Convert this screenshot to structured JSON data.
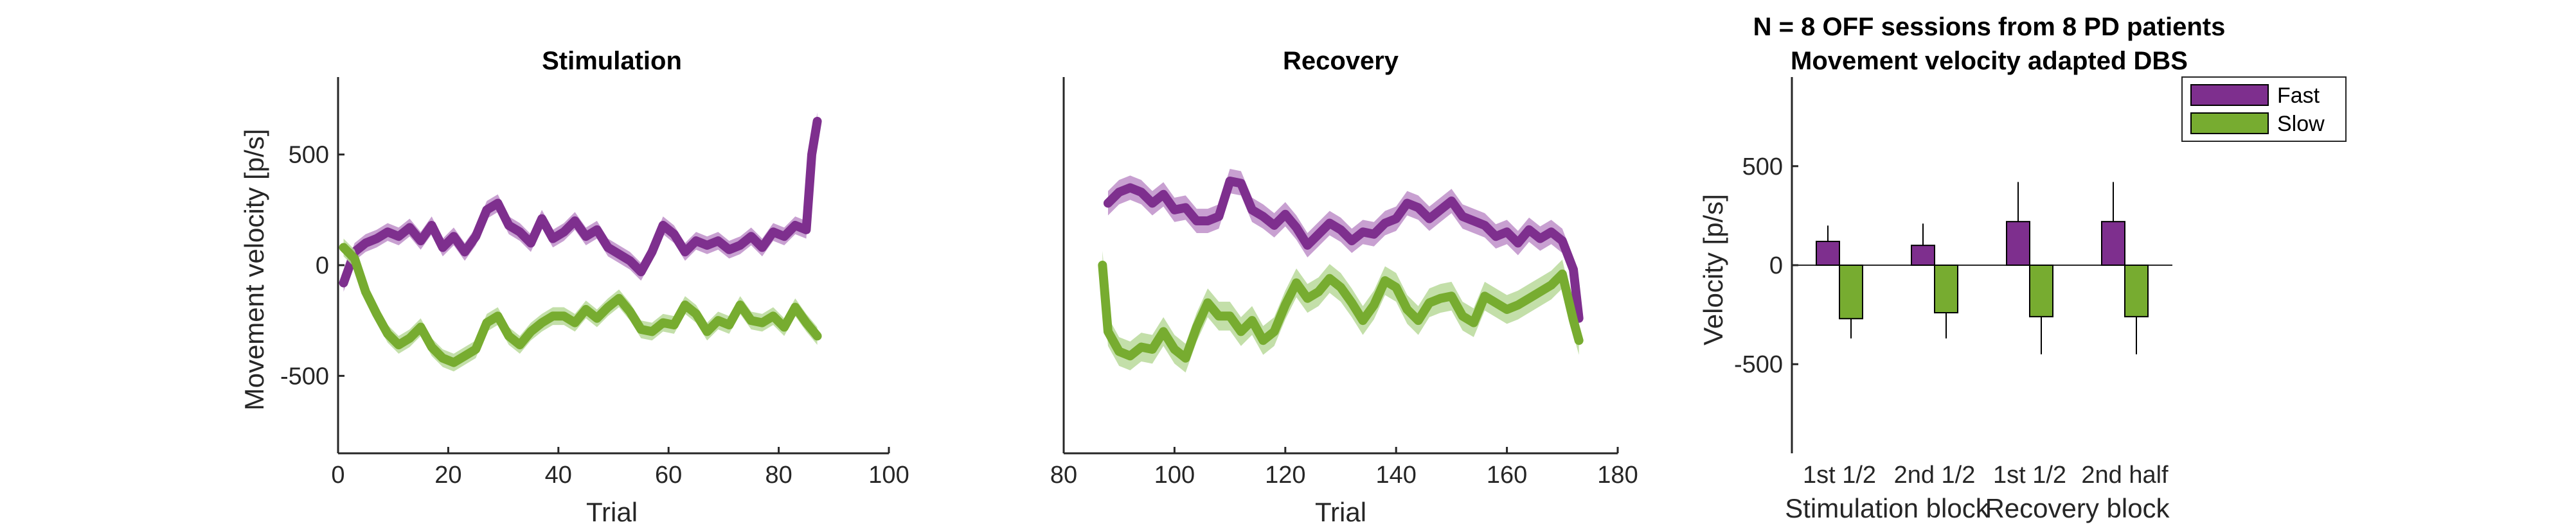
{
  "colors": {
    "fast": "#7E2F8E",
    "slow": "#77AC30",
    "fast_band": "#BE8FC9",
    "slow_band": "#B8D99A"
  },
  "chart_data": [
    {
      "type": "line",
      "title": "Stimulation",
      "xlabel": "Trial",
      "ylabel": "Movement velocity [p/s]",
      "xlim": [
        0,
        100
      ],
      "ylim": [
        -850,
        850
      ],
      "xticks": [
        0,
        20,
        40,
        60,
        80,
        100
      ],
      "yticks": [
        -500,
        0,
        500
      ],
      "series": [
        {
          "key": "fast",
          "x": [
            1,
            3,
            5,
            7,
            9,
            11,
            13,
            15,
            17,
            19,
            21,
            23,
            25,
            27,
            29,
            31,
            33,
            35,
            37,
            39,
            41,
            43,
            45,
            47,
            49,
            51,
            53,
            55,
            57,
            59,
            61,
            63,
            65,
            67,
            69,
            71,
            73,
            75,
            77,
            79,
            81,
            83,
            85,
            86,
            87
          ],
          "y": [
            -80,
            60,
            100,
            120,
            150,
            130,
            170,
            110,
            180,
            80,
            130,
            60,
            130,
            250,
            280,
            180,
            150,
            100,
            210,
            120,
            150,
            200,
            130,
            160,
            80,
            50,
            20,
            -30,
            60,
            180,
            140,
            60,
            110,
            90,
            110,
            70,
            90,
            130,
            80,
            150,
            130,
            180,
            160,
            500,
            650
          ],
          "band": 40
        },
        {
          "key": "slow",
          "x": [
            1,
            3,
            5,
            7,
            9,
            11,
            13,
            15,
            17,
            19,
            21,
            23,
            25,
            27,
            29,
            31,
            33,
            35,
            37,
            39,
            41,
            43,
            45,
            47,
            49,
            51,
            53,
            55,
            57,
            59,
            61,
            63,
            65,
            67,
            69,
            71,
            73,
            75,
            77,
            79,
            81,
            83,
            85,
            87
          ],
          "y": [
            80,
            30,
            -120,
            -220,
            -310,
            -360,
            -330,
            -280,
            -370,
            -420,
            -440,
            -410,
            -380,
            -260,
            -230,
            -320,
            -360,
            -300,
            -260,
            -230,
            -230,
            -260,
            -200,
            -240,
            -190,
            -150,
            -210,
            -290,
            -300,
            -260,
            -270,
            -180,
            -220,
            -300,
            -250,
            -270,
            -180,
            -250,
            -260,
            -230,
            -280,
            -190,
            -260,
            -320
          ],
          "band": 40
        }
      ]
    },
    {
      "type": "line",
      "title": "Recovery",
      "xlabel": "Trial",
      "ylabel": "",
      "xlim": [
        80,
        180
      ],
      "ylim": [
        -850,
        850
      ],
      "xticks": [
        80,
        100,
        120,
        140,
        160,
        180
      ],
      "yticks": [],
      "series": [
        {
          "key": "fast",
          "x": [
            88,
            90,
            92,
            94,
            96,
            98,
            100,
            102,
            104,
            106,
            108,
            110,
            112,
            114,
            116,
            118,
            120,
            122,
            124,
            126,
            128,
            130,
            132,
            134,
            136,
            138,
            140,
            142,
            144,
            146,
            148,
            150,
            152,
            154,
            156,
            158,
            160,
            162,
            164,
            166,
            168,
            170,
            172,
            173
          ],
          "y": [
            280,
            330,
            350,
            330,
            280,
            320,
            250,
            260,
            200,
            200,
            220,
            380,
            370,
            250,
            220,
            180,
            230,
            170,
            90,
            140,
            190,
            160,
            110,
            150,
            140,
            190,
            210,
            280,
            260,
            210,
            250,
            290,
            220,
            200,
            180,
            130,
            150,
            100,
            160,
            120,
            150,
            110,
            -20,
            -240
          ],
          "band": 55
        },
        {
          "key": "slow",
          "x": [
            87,
            88,
            90,
            92,
            94,
            96,
            98,
            100,
            102,
            104,
            106,
            108,
            110,
            112,
            114,
            116,
            118,
            120,
            122,
            124,
            126,
            128,
            130,
            132,
            134,
            136,
            138,
            140,
            142,
            144,
            146,
            148,
            150,
            152,
            154,
            156,
            158,
            160,
            162,
            164,
            166,
            168,
            170,
            172,
            173
          ],
          "y": [
            0,
            -300,
            -390,
            -410,
            -370,
            -380,
            -300,
            -380,
            -420,
            -280,
            -170,
            -230,
            -230,
            -300,
            -250,
            -340,
            -300,
            -180,
            -80,
            -150,
            -120,
            -60,
            -100,
            -170,
            -250,
            -180,
            -70,
            -100,
            -200,
            -250,
            -170,
            -150,
            -140,
            -230,
            -260,
            -140,
            -170,
            -200,
            -180,
            -150,
            -120,
            -90,
            -40,
            -250,
            -340
          ],
          "band": 65
        }
      ]
    },
    {
      "type": "bar",
      "title": "N = 8 OFF sessions from 8 PD patients",
      "subtitle": "Movement velocity adapted DBS",
      "ylabel": "Velocity [p/s]",
      "ylim": [
        -950,
        950
      ],
      "yticks": [
        -500,
        0,
        500
      ],
      "categories": [
        "1st 1/2",
        "2nd 1/2",
        "1st 1/2",
        "2nd half"
      ],
      "groups": [
        "Stimulation block",
        "Recovery block"
      ],
      "legend": {
        "placement": "top-right"
      },
      "series": [
        {
          "key": "fast",
          "name": "Fast",
          "values": [
            120,
            100,
            220,
            220
          ],
          "err_high": [
            200,
            210,
            420,
            420
          ]
        },
        {
          "key": "slow",
          "name": "Slow",
          "values": [
            -270,
            -240,
            -260,
            -260
          ],
          "err_low": [
            -370,
            -370,
            -450,
            -450
          ]
        }
      ]
    }
  ]
}
